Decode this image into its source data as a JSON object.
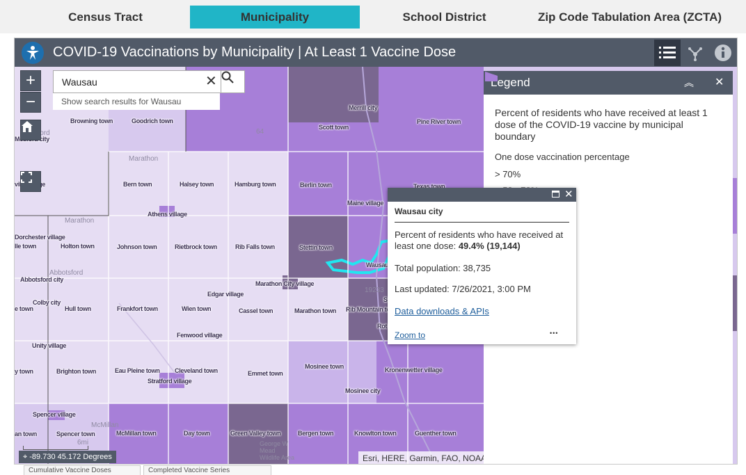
{
  "tabs": [
    {
      "label": "Census Tract"
    },
    {
      "label": "Municipality"
    },
    {
      "label": "School District"
    },
    {
      "label": "Zip Code Tabulation Area (ZCTA)"
    }
  ],
  "active_tab": "Municipality",
  "header": {
    "title": "COVID-19 Vaccinations by Municipality | At Least 1 Vaccine Dose",
    "bg": "#515a68"
  },
  "search": {
    "value": "Wausau",
    "suggestion": "Show search results for Wausau"
  },
  "map": {
    "labels": [
      "Merrill city",
      "Scott town",
      "Pine River town",
      "Browning town",
      "Goodrich town",
      "Berlin town",
      "Bern town",
      "Halsey town",
      "Hamburg town",
      "Texas town",
      "Maine village",
      "Athens village",
      "Stettin town",
      "Holton town",
      "Johnson town",
      "Rietbrock town",
      "Rib Falls town",
      "Marathon City village",
      "Edgar village",
      "Frankfort town",
      "Wien town",
      "Cassel town",
      "Marathon town",
      "Rib Mountain town",
      "Fenwood village",
      "Eau Pleine town",
      "Cleveland town",
      "Emmet town",
      "Mosinee town",
      "Kronenwetter village",
      "Stratford village",
      "Mosinee city",
      "McMillan town",
      "Day town",
      "Green Valley town",
      "Bergen town",
      "Knowlton town",
      "Guenther town",
      "Brighton town",
      "Unity village",
      "Spencer village",
      "Spencer town",
      "Colby city",
      "Hull town",
      "Abbotsford city",
      "Dorchester village",
      "Medford city",
      "Wausau city"
    ],
    "partial_labels": [
      "ville village",
      "lle town",
      "y town",
      "an town",
      "e town",
      "Rot",
      "S"
    ],
    "faint_labels": [
      "Marathon",
      "Marathon",
      "Abbotsford",
      "McMillan",
      "Medford",
      "6mi",
      "64",
      "19233",
      "George W Mead Wildlife Area"
    ],
    "coordinates": "-89.730 45.172 Degrees",
    "attribution": "Esri, HERE, Garmin, FAO, NOAA",
    "colors": {
      "darkest": "#7a6790",
      "dark": "#a77fd8",
      "medium": "#c9b4ea",
      "light": "#e6ddf3",
      "highlight": "#21e6f0"
    }
  },
  "legend": {
    "title": "Legend",
    "description": "Percent of residents who have received at least 1 dose of the COVID-19 vaccine by municipal boundary",
    "field": "One dose vaccination percentage",
    "classes": [
      {
        "label": "> 70%",
        "color": "#7a6790"
      },
      {
        "label": "> 50 - 70%",
        "color": "#a77fd8"
      }
    ]
  },
  "popup": {
    "title": "Wausau city",
    "field_label": "Percent of residents who have received at least one dose:",
    "field_value": "49.4% (19,144)",
    "population": "Total population: 38,735",
    "updated": "Last updated: 7/26/2021, 3:00 PM",
    "link": "Data downloads & APIs",
    "zoom": "Zoom to",
    "more": "•••"
  },
  "bottom_tabs": [
    "Cumulative Vaccine Doses",
    "Completed Vaccine Series"
  ]
}
